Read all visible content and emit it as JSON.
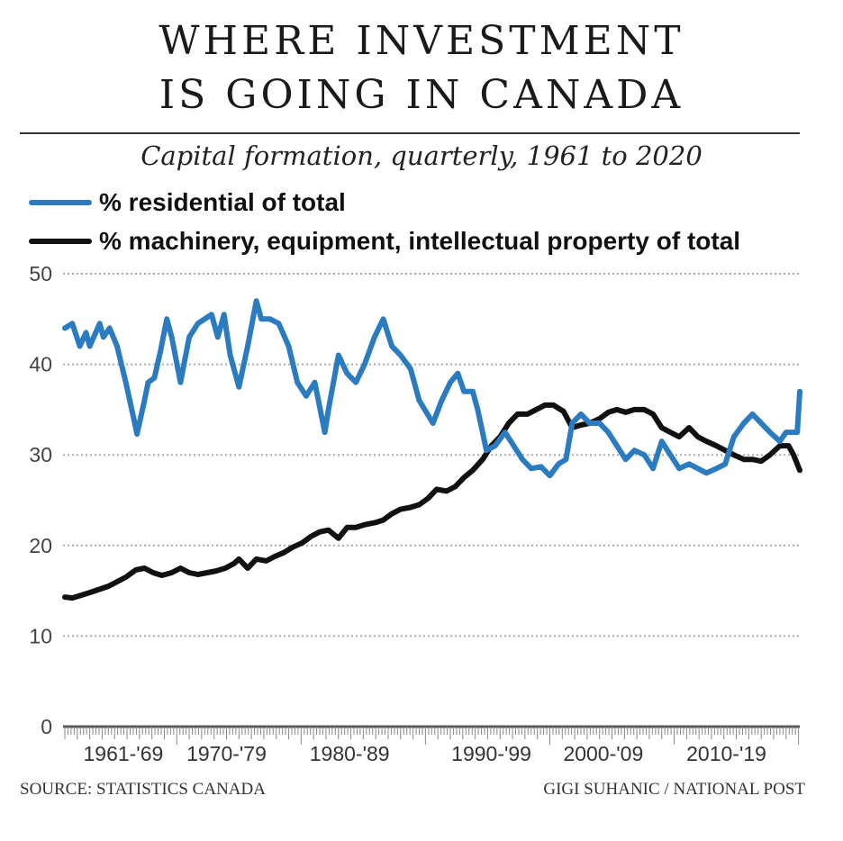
{
  "chart_data": {
    "type": "line",
    "title": "WHERE INVESTMENT IS GOING IN CANADA",
    "title_lines": [
      "WHERE INVESTMENT",
      "IS GOING IN CANADA"
    ],
    "subtitle": "Capital formation, quarterly, 1961 to 2020",
    "xlabel": "",
    "ylabel": "",
    "xlim": [
      1961.0,
      2020.1
    ],
    "ylim": [
      0,
      50
    ],
    "yticks": [
      0,
      10,
      20,
      30,
      40,
      50
    ],
    "grid": true,
    "legend_position": "top-left",
    "x_tick_labels": [
      {
        "label": "1961-'69",
        "center_year": 1965.7
      },
      {
        "label": "1970-'79",
        "center_year": 1974.0
      },
      {
        "label": "1980-'89",
        "center_year": 1983.9
      },
      {
        "label": "1990-'99",
        "center_year": 1995.3
      },
      {
        "label": "2000-'09",
        "center_year": 2004.3
      },
      {
        "label": "2010-'19",
        "center_year": 2014.2
      }
    ],
    "series": [
      {
        "name": "% residential of total",
        "color": "#2b7bc1",
        "points": [
          [
            1961.0,
            44
          ],
          [
            1961.6,
            44.5
          ],
          [
            1962.2,
            42
          ],
          [
            1962.7,
            43.5
          ],
          [
            1963.0,
            42
          ],
          [
            1963.8,
            44.5
          ],
          [
            1964.1,
            43
          ],
          [
            1964.6,
            44
          ],
          [
            1965.2,
            42
          ],
          [
            1965.9,
            38
          ],
          [
            1966.7,
            33
          ],
          [
            1966.8,
            32.3
          ],
          [
            1967.4,
            36
          ],
          [
            1967.7,
            38
          ],
          [
            1968.2,
            38.5
          ],
          [
            1968.7,
            41.5
          ],
          [
            1969.2,
            45
          ],
          [
            1969.6,
            43
          ],
          [
            1970.3,
            38
          ],
          [
            1971.0,
            43
          ],
          [
            1971.7,
            44.5
          ],
          [
            1972.8,
            45.5
          ],
          [
            1973.3,
            43
          ],
          [
            1973.8,
            45.5
          ],
          [
            1974.3,
            41
          ],
          [
            1975.0,
            37.5
          ],
          [
            1975.7,
            42
          ],
          [
            1976.4,
            47
          ],
          [
            1976.8,
            45
          ],
          [
            1977.5,
            45
          ],
          [
            1978.2,
            44.5
          ],
          [
            1979.0,
            42
          ],
          [
            1979.7,
            38
          ],
          [
            1980.4,
            36.5
          ],
          [
            1981.1,
            38
          ],
          [
            1981.9,
            32.5
          ],
          [
            1982.2,
            35
          ],
          [
            1983.0,
            41
          ],
          [
            1983.7,
            39
          ],
          [
            1984.4,
            38
          ],
          [
            1985.1,
            40
          ],
          [
            1985.9,
            43
          ],
          [
            1986.6,
            45
          ],
          [
            1987.3,
            42
          ],
          [
            1988.0,
            41
          ],
          [
            1988.8,
            39.5
          ],
          [
            1989.5,
            36
          ],
          [
            1990.6,
            33.5
          ],
          [
            1991.3,
            36
          ],
          [
            1992.0,
            38
          ],
          [
            1992.6,
            39
          ],
          [
            1993.1,
            37
          ],
          [
            1993.8,
            37
          ],
          [
            1994.2,
            35
          ],
          [
            1994.9,
            30.5
          ],
          [
            1995.6,
            31
          ],
          [
            1996.4,
            32.5
          ],
          [
            1997.1,
            31
          ],
          [
            1997.8,
            29.5
          ],
          [
            1998.5,
            28.5
          ],
          [
            1999.3,
            28.7
          ],
          [
            2000.0,
            27.7
          ],
          [
            2000.7,
            29
          ],
          [
            2001.3,
            29.5
          ],
          [
            2001.8,
            33.5
          ],
          [
            2002.5,
            34.5
          ],
          [
            2003.2,
            33.5
          ],
          [
            2004.0,
            33.5
          ],
          [
            2004.7,
            32.5
          ],
          [
            2005.4,
            31
          ],
          [
            2006.1,
            29.5
          ],
          [
            2006.8,
            30.5
          ],
          [
            2007.6,
            30
          ],
          [
            2008.3,
            28.5
          ],
          [
            2009.0,
            31.5
          ],
          [
            2009.7,
            30
          ],
          [
            2010.4,
            28.5
          ],
          [
            2011.2,
            29
          ],
          [
            2011.9,
            28.5
          ],
          [
            2012.6,
            28
          ],
          [
            2013.4,
            28.5
          ],
          [
            2014.1,
            29
          ],
          [
            2014.8,
            32
          ],
          [
            2015.6,
            33.5
          ],
          [
            2016.3,
            34.5
          ],
          [
            2017.0,
            33.5
          ],
          [
            2017.7,
            32.5
          ],
          [
            2018.5,
            31.5
          ],
          [
            2019.0,
            32.5
          ],
          [
            2019.6,
            32.5
          ],
          [
            2019.9,
            32.5
          ],
          [
            2020.1,
            37
          ]
        ]
      },
      {
        "name": "% machinery, equipment, intellectual property of total",
        "color": "#111111",
        "points": [
          [
            1961.0,
            14.3
          ],
          [
            1961.6,
            14.2
          ],
          [
            1963.0,
            14.8
          ],
          [
            1964.5,
            15.5
          ],
          [
            1965.9,
            16.5
          ],
          [
            1966.7,
            17.3
          ],
          [
            1967.4,
            17.5
          ],
          [
            1968.1,
            17
          ],
          [
            1968.8,
            16.7
          ],
          [
            1969.6,
            17
          ],
          [
            1970.3,
            17.5
          ],
          [
            1971.0,
            17
          ],
          [
            1971.7,
            16.8
          ],
          [
            1973.2,
            17.2
          ],
          [
            1973.9,
            17.5
          ],
          [
            1974.6,
            18
          ],
          [
            1975.0,
            18.5
          ],
          [
            1975.7,
            17.5
          ],
          [
            1976.4,
            18.5
          ],
          [
            1977.2,
            18.3
          ],
          [
            1977.9,
            18.8
          ],
          [
            1978.6,
            19.2
          ],
          [
            1979.3,
            19.8
          ],
          [
            1980.1,
            20.3
          ],
          [
            1980.8,
            21
          ],
          [
            1981.5,
            21.5
          ],
          [
            1982.2,
            21.7
          ],
          [
            1983.0,
            20.8
          ],
          [
            1983.7,
            22
          ],
          [
            1984.4,
            22
          ],
          [
            1985.1,
            22.3
          ],
          [
            1985.9,
            22.5
          ],
          [
            1986.6,
            22.8
          ],
          [
            1987.3,
            23.5
          ],
          [
            1988.0,
            24
          ],
          [
            1988.8,
            24.2
          ],
          [
            1989.5,
            24.5
          ],
          [
            1990.2,
            25.2
          ],
          [
            1990.9,
            26.2
          ],
          [
            1991.7,
            26
          ],
          [
            1992.4,
            26.5
          ],
          [
            1993.1,
            27.5
          ],
          [
            1993.8,
            28.3
          ],
          [
            1994.6,
            29.5
          ],
          [
            1995.3,
            31
          ],
          [
            1996.0,
            32
          ],
          [
            1996.7,
            33.5
          ],
          [
            1997.4,
            34.5
          ],
          [
            1998.2,
            34.5
          ],
          [
            1998.9,
            35
          ],
          [
            1999.6,
            35.5
          ],
          [
            2000.3,
            35.5
          ],
          [
            2001.1,
            34.8
          ],
          [
            2001.8,
            33
          ],
          [
            2002.5,
            33.3
          ],
          [
            2003.2,
            33.5
          ],
          [
            2004.0,
            34
          ],
          [
            2004.7,
            34.7
          ],
          [
            2005.4,
            35
          ],
          [
            2006.1,
            34.7
          ],
          [
            2006.8,
            35
          ],
          [
            2007.6,
            35
          ],
          [
            2008.3,
            34.5
          ],
          [
            2009.0,
            33
          ],
          [
            2009.7,
            32.5
          ],
          [
            2010.4,
            32
          ],
          [
            2011.2,
            33
          ],
          [
            2011.9,
            32
          ],
          [
            2012.6,
            31.5
          ],
          [
            2013.4,
            31
          ],
          [
            2014.1,
            30.5
          ],
          [
            2014.8,
            30
          ],
          [
            2015.6,
            29.5
          ],
          [
            2016.3,
            29.5
          ],
          [
            2017.0,
            29.3
          ],
          [
            2017.7,
            30
          ],
          [
            2018.5,
            31
          ],
          [
            2019.2,
            31
          ],
          [
            2019.6,
            30
          ],
          [
            2020.1,
            28.3
          ]
        ]
      }
    ]
  },
  "footer": {
    "source": "SOURCE: STATISTICS CANADA",
    "credit": "GIGI SUHANIC / NATIONAL POST"
  }
}
